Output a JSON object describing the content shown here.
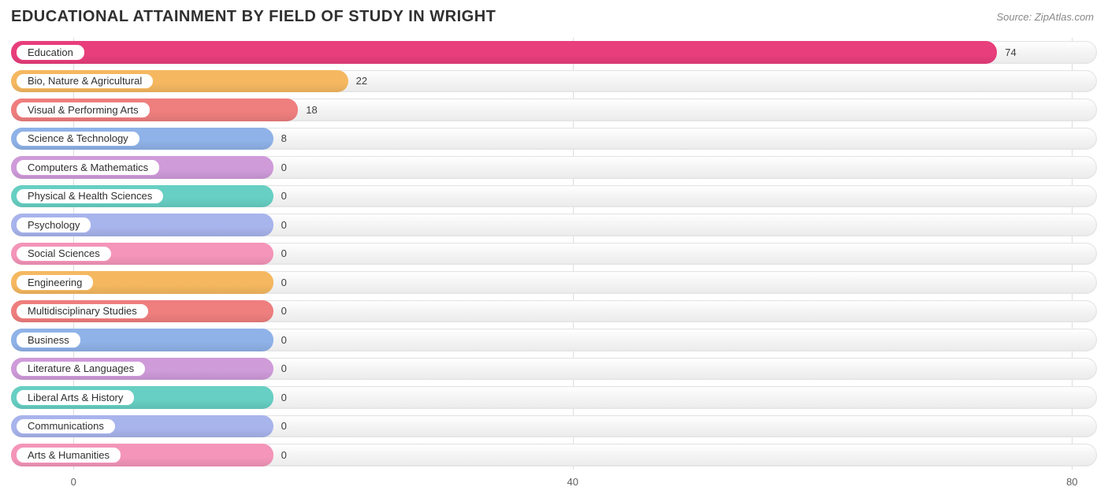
{
  "title": "EDUCATIONAL ATTAINMENT BY FIELD OF STUDY IN WRIGHT",
  "source": "Source: ZipAtlas.com",
  "chart": {
    "type": "bar-horizontal",
    "background_color": "#ffffff",
    "track_gradient_top": "#ffffff",
    "track_gradient_bottom": "#ececec",
    "track_border": "#e4e4e4",
    "grid_color": "#dddddd",
    "xmin": -5,
    "xmax": 82,
    "x_ticks": [
      0,
      40,
      80
    ],
    "label_fontsize": 13,
    "title_fontsize": 20,
    "title_color": "#303030",
    "source_color": "#888888",
    "tick_color": "#606060",
    "value_color": "#404040",
    "min_bar_value_for_width": 16,
    "bars": [
      {
        "label": "Education",
        "value": 74,
        "color": "#e83e7b"
      },
      {
        "label": "Bio, Nature & Agricultural",
        "value": 22,
        "color": "#f5b860"
      },
      {
        "label": "Visual & Performing Arts",
        "value": 18,
        "color": "#ef7e7e"
      },
      {
        "label": "Science & Technology",
        "value": 8,
        "color": "#8fb2e8"
      },
      {
        "label": "Computers & Mathematics",
        "value": 0,
        "color": "#cf9bd9"
      },
      {
        "label": "Physical & Health Sciences",
        "value": 0,
        "color": "#67cfc3"
      },
      {
        "label": "Psychology",
        "value": 0,
        "color": "#a8b4ec"
      },
      {
        "label": "Social Sciences",
        "value": 0,
        "color": "#f495b9"
      },
      {
        "label": "Engineering",
        "value": 0,
        "color": "#f5b860"
      },
      {
        "label": "Multidisciplinary Studies",
        "value": 0,
        "color": "#ef7e7e"
      },
      {
        "label": "Business",
        "value": 0,
        "color": "#8fb2e8"
      },
      {
        "label": "Literature & Languages",
        "value": 0,
        "color": "#cf9bd9"
      },
      {
        "label": "Liberal Arts & History",
        "value": 0,
        "color": "#67cfc3"
      },
      {
        "label": "Communications",
        "value": 0,
        "color": "#a8b4ec"
      },
      {
        "label": "Arts & Humanities",
        "value": 0,
        "color": "#f495b9"
      }
    ]
  }
}
